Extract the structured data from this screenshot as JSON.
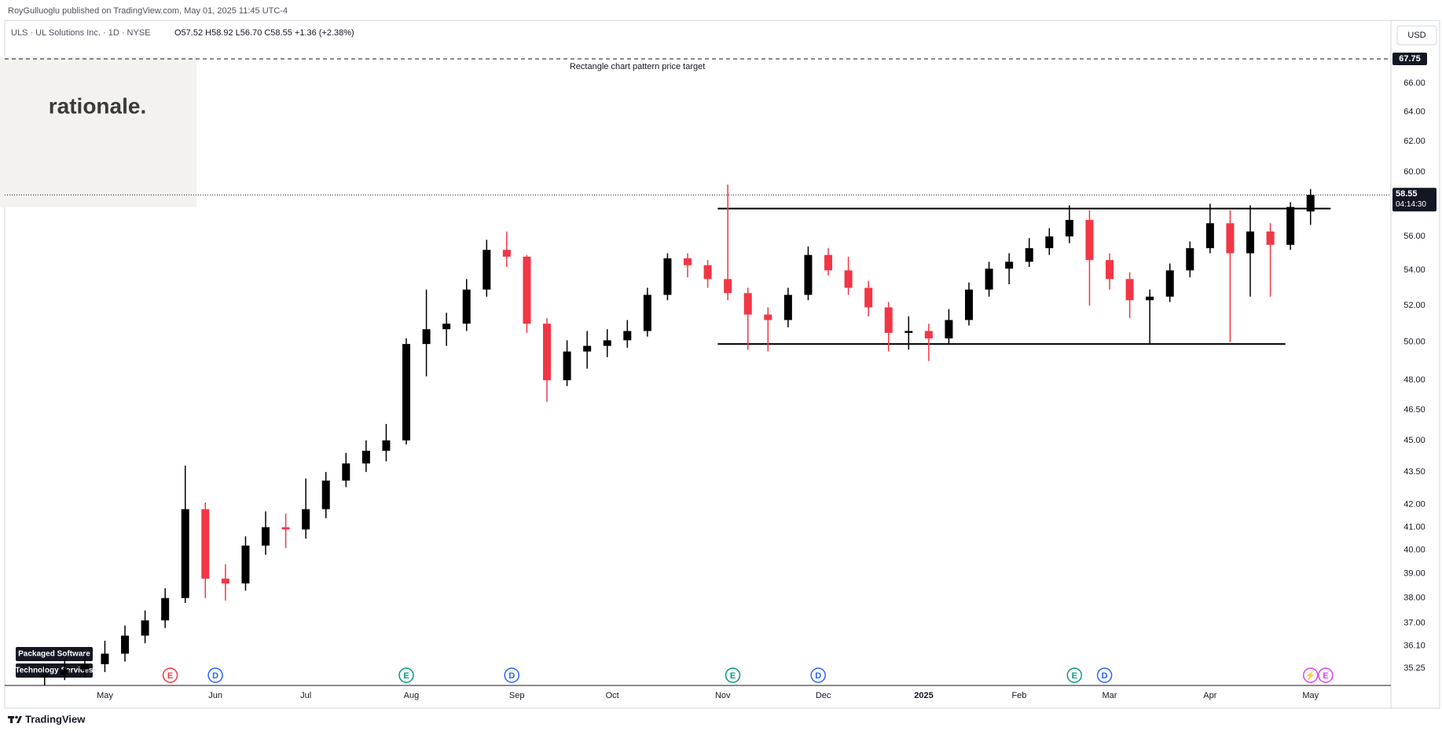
{
  "header": {
    "publisher": "RoyGulluoglu published on TradingView.com, May 01, 2025 11:45 UTC-4"
  },
  "symbol": {
    "name": "ULS · UL Solutions Inc. · 1D · NYSE",
    "ohlc_text": "O57.52  H58.92  L56.70  C58.55  +1.36 (+2.38%)"
  },
  "logo": "rationale.",
  "sector_tags": [
    "Packaged Software",
    "Technology Services"
  ],
  "footer": "TradingView",
  "chart_data": {
    "type": "candlestick",
    "log_scale": true,
    "currency": "USD",
    "up_color": "#000000",
    "down_color": "#f23645",
    "xlim": [
      -7,
      268
    ],
    "ylim": [
      34.6,
      70.6
    ],
    "xticks": [
      {
        "value": 12,
        "label": "May"
      },
      {
        "value": 34,
        "label": "Jun"
      },
      {
        "value": 52,
        "label": "Jul"
      },
      {
        "value": 73,
        "label": "Aug"
      },
      {
        "value": 94,
        "label": "Sep"
      },
      {
        "value": 113,
        "label": "Oct"
      },
      {
        "value": 135,
        "label": "Nov"
      },
      {
        "value": 155,
        "label": "Dec"
      },
      {
        "value": 175,
        "label": "2025"
      },
      {
        "value": 194,
        "label": "Feb"
      },
      {
        "value": 212,
        "label": "Mar"
      },
      {
        "value": 232,
        "label": "Apr"
      },
      {
        "value": 252,
        "label": "May"
      }
    ],
    "yticks": [
      35.25,
      {
        "value": 36.1,
        "label": "36.10"
      },
      {
        "value": 37,
        "label": "37.00"
      },
      {
        "value": 38,
        "label": "38.00"
      },
      {
        "value": 39,
        "label": "39.00"
      },
      {
        "value": 40,
        "label": "40.00"
      },
      {
        "value": 41,
        "label": "41.00"
      },
      {
        "value": 42,
        "label": "42.00"
      },
      {
        "value": 43.5,
        "label": "43.50"
      },
      {
        "value": 45,
        "label": "45.00"
      },
      {
        "value": 46.5,
        "label": "46.50"
      },
      {
        "value": 48,
        "label": "48.00"
      },
      {
        "value": 50,
        "label": "50.00"
      },
      {
        "value": 52,
        "label": "52.00"
      },
      {
        "value": 54,
        "label": "54.00"
      },
      {
        "value": 56,
        "label": "56.00"
      },
      {
        "value": 60,
        "label": "60.00"
      },
      {
        "value": 62,
        "label": "62.00"
      },
      {
        "value": 64,
        "label": "64.00"
      },
      {
        "value": 66,
        "label": "66.00"
      }
    ],
    "candles": [
      [
        0,
        34.9,
        35.4,
        34.6,
        35.0
      ],
      [
        4,
        35.0,
        35.6,
        34.8,
        35.2
      ],
      [
        8,
        35.2,
        35.8,
        34.9,
        35.4
      ],
      [
        12,
        35.4,
        36.3,
        35.1,
        35.8
      ],
      [
        16,
        35.8,
        36.9,
        35.5,
        36.5
      ],
      [
        20,
        36.5,
        37.5,
        36.2,
        37.1
      ],
      [
        24,
        37.1,
        38.4,
        36.8,
        38.0
      ],
      [
        28,
        38.0,
        43.8,
        37.8,
        41.8
      ],
      [
        32,
        41.8,
        42.1,
        38.0,
        38.8
      ],
      [
        36,
        38.8,
        39.4,
        37.9,
        38.6
      ],
      [
        40,
        38.6,
        40.6,
        38.3,
        40.2
      ],
      [
        44,
        40.2,
        41.7,
        39.8,
        41.0
      ],
      [
        48,
        41.0,
        41.6,
        40.1,
        40.9
      ],
      [
        52,
        40.9,
        43.2,
        40.5,
        41.8
      ],
      [
        56,
        41.8,
        43.5,
        41.4,
        43.1
      ],
      [
        60,
        43.1,
        44.4,
        42.8,
        43.9
      ],
      [
        64,
        43.9,
        45.0,
        43.5,
        44.5
      ],
      [
        68,
        44.5,
        45.8,
        44.0,
        45.0
      ],
      [
        72,
        45.0,
        50.2,
        44.8,
        49.9
      ],
      [
        76,
        49.9,
        52.9,
        48.2,
        50.7
      ],
      [
        80,
        50.7,
        51.6,
        49.8,
        51.0
      ],
      [
        84,
        51.0,
        53.5,
        50.6,
        52.9
      ],
      [
        88,
        52.9,
        55.8,
        52.5,
        55.2
      ],
      [
        92,
        55.2,
        56.3,
        54.2,
        54.8
      ],
      [
        96,
        54.8,
        54.9,
        50.5,
        51.0
      ],
      [
        100,
        51.0,
        51.3,
        46.9,
        48.0
      ],
      [
        104,
        48.0,
        50.1,
        47.7,
        49.5
      ],
      [
        108,
        49.5,
        50.6,
        48.6,
        49.8
      ],
      [
        112,
        49.8,
        50.7,
        49.2,
        50.1
      ],
      [
        116,
        50.1,
        51.2,
        49.7,
        50.6
      ],
      [
        120,
        50.6,
        53.0,
        50.3,
        52.6
      ],
      [
        124,
        52.6,
        55.0,
        52.3,
        54.7
      ],
      [
        128,
        54.7,
        55.0,
        53.6,
        54.3
      ],
      [
        132,
        54.3,
        54.6,
        53.0,
        53.5
      ],
      [
        136,
        53.5,
        59.2,
        52.3,
        52.7
      ],
      [
        140,
        52.7,
        53.0,
        49.6,
        51.5
      ],
      [
        144,
        51.5,
        51.9,
        49.5,
        51.2
      ],
      [
        148,
        51.2,
        53.0,
        50.8,
        52.6
      ],
      [
        152,
        52.6,
        55.4,
        52.3,
        54.9
      ],
      [
        156,
        54.9,
        55.3,
        53.7,
        54.0
      ],
      [
        160,
        54.0,
        54.8,
        52.6,
        53.0
      ],
      [
        164,
        53.0,
        53.4,
        51.4,
        51.9
      ],
      [
        168,
        51.9,
        52.2,
        49.5,
        50.5
      ],
      [
        172,
        50.5,
        51.4,
        49.6,
        50.6
      ],
      [
        176,
        50.6,
        51.0,
        49.0,
        50.2
      ],
      [
        180,
        50.2,
        51.8,
        49.9,
        51.2
      ],
      [
        184,
        51.2,
        53.3,
        50.9,
        52.9
      ],
      [
        188,
        52.9,
        54.5,
        52.5,
        54.1
      ],
      [
        192,
        54.1,
        55.0,
        53.2,
        54.5
      ],
      [
        196,
        54.5,
        55.9,
        54.2,
        55.3
      ],
      [
        200,
        55.3,
        56.5,
        54.9,
        56.0
      ],
      [
        204,
        56.0,
        57.9,
        55.6,
        57.0
      ],
      [
        208,
        57.0,
        57.6,
        52.0,
        54.6
      ],
      [
        212,
        54.6,
        55.0,
        52.9,
        53.5
      ],
      [
        216,
        53.5,
        53.9,
        51.3,
        52.3
      ],
      [
        220,
        52.3,
        52.9,
        49.9,
        52.5
      ],
      [
        224,
        52.5,
        54.4,
        52.2,
        54.0
      ],
      [
        228,
        54.0,
        55.7,
        53.6,
        55.3
      ],
      [
        232,
        55.3,
        58.0,
        55.0,
        56.8
      ],
      [
        236,
        56.8,
        57.6,
        50.0,
        55.0
      ],
      [
        240,
        55.0,
        57.9,
        52.5,
        56.3
      ],
      [
        244,
        56.3,
        56.8,
        52.5,
        55.5
      ],
      [
        248,
        55.5,
        58.1,
        55.2,
        57.8
      ],
      [
        252,
        57.52,
        58.92,
        56.7,
        58.55
      ]
    ],
    "rectangle": {
      "top": 57.7,
      "bottom": 49.9,
      "top_x": [
        134,
        256
      ],
      "bottom_x": [
        134,
        247
      ]
    },
    "target": {
      "value": 67.75,
      "label": "Rectangle chart pattern price target"
    },
    "last_price": 58.55,
    "countdown": "04:14:30",
    "events": [
      {
        "x": 25,
        "label": "E",
        "color": "#f23645"
      },
      {
        "x": 34,
        "label": "D",
        "color": "#2962ff"
      },
      {
        "x": 72,
        "label": "E",
        "color": "#089981"
      },
      {
        "x": 93,
        "label": "D",
        "color": "#2962ff"
      },
      {
        "x": 137,
        "label": "E",
        "color": "#089981"
      },
      {
        "x": 154,
        "label": "D",
        "color": "#2962ff"
      },
      {
        "x": 205,
        "label": "E",
        "color": "#089981"
      },
      {
        "x": 211,
        "label": "D",
        "color": "#2962ff"
      },
      {
        "x": 252,
        "label": "⚡",
        "color": "#e040fb"
      },
      {
        "x": 255,
        "label": "E",
        "color": "#e040fb"
      }
    ]
  }
}
